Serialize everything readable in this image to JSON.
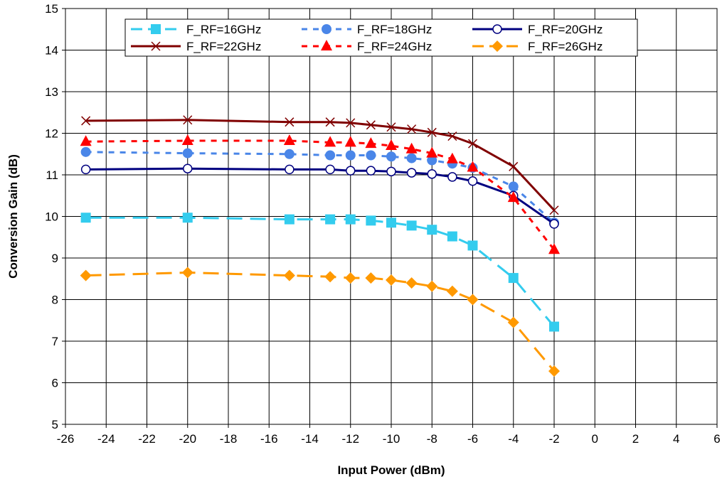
{
  "chart_data": {
    "type": "line",
    "title": "",
    "xlabel": "Input Power (dBm)",
    "ylabel": "Conversion Gain (dB)",
    "xlim": [
      -26,
      6
    ],
    "ylim": [
      5,
      15
    ],
    "xticks": [
      -26,
      -24,
      -22,
      -20,
      -18,
      -16,
      -14,
      -12,
      -10,
      -8,
      -6,
      -4,
      -2,
      0,
      2,
      4,
      6
    ],
    "yticks": [
      5,
      6,
      7,
      8,
      9,
      10,
      11,
      12,
      13,
      14,
      15
    ],
    "grid": true,
    "legend_position": "top",
    "x": [
      -25,
      -20,
      -15,
      -13,
      -12,
      -11,
      -10,
      -9,
      -8,
      -7,
      -6,
      -4,
      -2
    ],
    "series": [
      {
        "name": "F_RF=16GHz",
        "color": "#33CCEE",
        "dash": "long",
        "marker": "square",
        "values": [
          9.97,
          9.97,
          9.93,
          9.93,
          9.93,
          9.9,
          9.85,
          9.78,
          9.68,
          9.52,
          9.3,
          8.52,
          7.35
        ]
      },
      {
        "name": "F_RF=18GHz",
        "color": "#4A86E8",
        "dash": "short",
        "marker": "circle",
        "values": [
          11.55,
          11.52,
          11.5,
          11.47,
          11.47,
          11.47,
          11.44,
          11.4,
          11.35,
          11.27,
          11.17,
          10.72,
          9.85
        ]
      },
      {
        "name": "F_RF=20GHz",
        "color": "#000080",
        "dash": "solid",
        "marker": "open-circle",
        "values": [
          11.13,
          11.15,
          11.13,
          11.13,
          11.1,
          11.1,
          11.08,
          11.05,
          11.02,
          10.95,
          10.85,
          10.5,
          9.82
        ]
      },
      {
        "name": "F_RF=22GHz",
        "color": "#800000",
        "dash": "solid",
        "marker": "x",
        "values": [
          12.3,
          12.32,
          12.27,
          12.27,
          12.25,
          12.2,
          12.15,
          12.1,
          12.02,
          11.93,
          11.75,
          11.2,
          10.15
        ]
      },
      {
        "name": "F_RF=24GHz",
        "color": "#FF0000",
        "dash": "short",
        "marker": "triangle",
        "values": [
          11.8,
          11.82,
          11.82,
          11.78,
          11.78,
          11.75,
          11.7,
          11.62,
          11.52,
          11.38,
          11.18,
          10.45,
          9.2
        ]
      },
      {
        "name": "F_RF=26GHz",
        "color": "#FF9900",
        "dash": "long",
        "marker": "diamond",
        "values": [
          8.58,
          8.65,
          8.58,
          8.55,
          8.52,
          8.52,
          8.47,
          8.4,
          8.32,
          8.2,
          8.0,
          7.45,
          6.28
        ]
      }
    ]
  }
}
